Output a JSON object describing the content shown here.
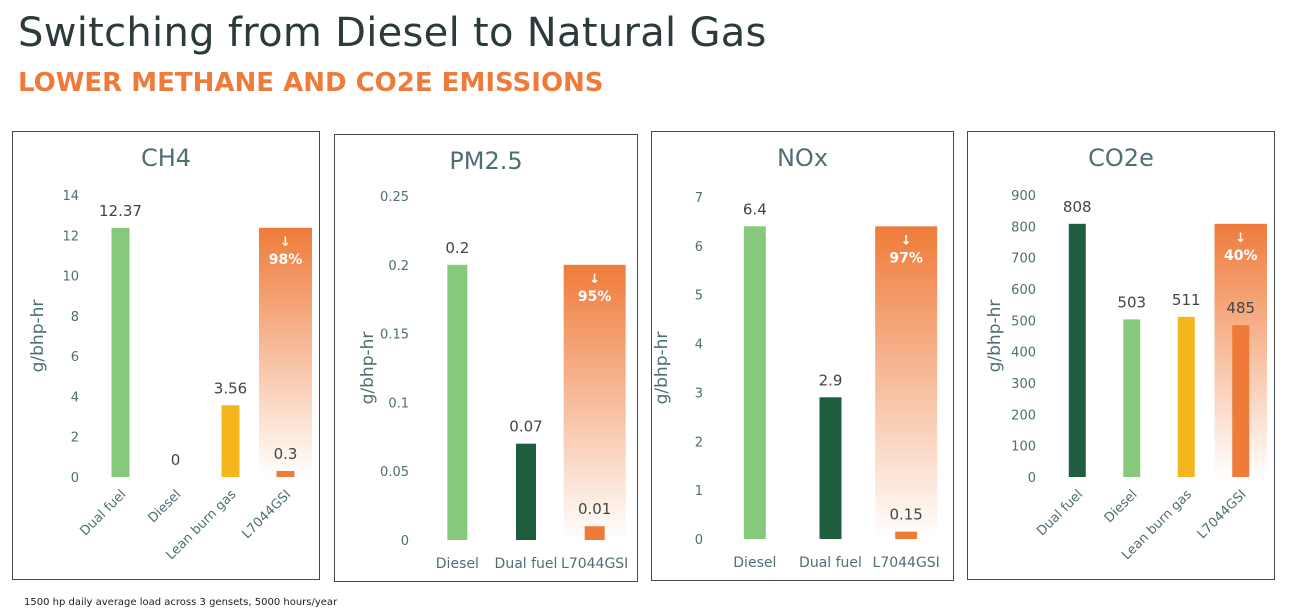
{
  "header": {
    "title": "Switching from Diesel to Natural Gas",
    "subtitle": "LOWER METHANE AND CO2E EMISSIONS"
  },
  "footnote": "1500 hp daily average load across 3 gensets, 5000 hours/year",
  "colors": {
    "light_green": "#87c97a",
    "dark_green": "#1e5e3f",
    "yellow": "#f5b51c",
    "orange": "#ef7b3a",
    "title": "#2b3a3a",
    "axis_text": "#4f6f73"
  },
  "chart_data": [
    {
      "type": "bar",
      "title": "CH4",
      "ylabel": "g/bhp-hr",
      "ylim": [
        0,
        14
      ],
      "yticks": [
        "0",
        "2",
        "4",
        "6",
        "8",
        "10",
        "12",
        "14"
      ],
      "categories": [
        "Dual fuel",
        "Diesel",
        "Lean burn gas",
        "L7044GSI"
      ],
      "values": [
        12.37,
        0,
        3.56,
        0.3
      ],
      "data_labels": [
        "12.37",
        "0",
        "3.56",
        "0.3"
      ],
      "bar_colors": [
        "#87c97a",
        "#87c97a",
        "#f5b51c",
        "#ef7b3a"
      ],
      "rotated_xlabels": true,
      "reduction": {
        "label": "98%",
        "arrow": "↓",
        "from": 12.37,
        "to": 0.3
      }
    },
    {
      "type": "bar",
      "title": "PM2.5",
      "ylabel": "g/bhp-hr",
      "ylim": [
        0,
        0.25
      ],
      "yticks": [
        "0",
        "0.05",
        "0.1",
        "0.15",
        "0.2",
        "0.25"
      ],
      "categories": [
        "Diesel",
        "Dual fuel",
        "L7044GSI"
      ],
      "values": [
        0.2,
        0.07,
        0.01
      ],
      "data_labels": [
        "0.2",
        "0.07",
        "0.01"
      ],
      "bar_colors": [
        "#87c97a",
        "#1e5e3f",
        "#ef7b3a"
      ],
      "rotated_xlabels": false,
      "reduction": {
        "label": "95%",
        "arrow": "↓",
        "from": 0.2,
        "to": 0.01
      }
    },
    {
      "type": "bar",
      "title": "NOx",
      "ylabel": "g/bhp-hr",
      "ylim": [
        0,
        7
      ],
      "yticks": [
        "0",
        "1",
        "2",
        "3",
        "4",
        "5",
        "6",
        "7"
      ],
      "categories": [
        "Diesel",
        "Dual fuel",
        "L7044GSI"
      ],
      "values": [
        6.4,
        2.9,
        0.15
      ],
      "data_labels": [
        "6.4",
        "2.9",
        "0.15"
      ],
      "bar_colors": [
        "#87c97a",
        "#1e5e3f",
        "#ef7b3a"
      ],
      "rotated_xlabels": false,
      "reduction": {
        "label": "97%",
        "arrow": "↓",
        "from": 6.4,
        "to": 0.15
      }
    },
    {
      "type": "bar",
      "title": "CO2e",
      "ylabel": "g/bhp-hr",
      "ylim": [
        0,
        900
      ],
      "yticks": [
        "0",
        "100",
        "200",
        "300",
        "400",
        "500",
        "600",
        "700",
        "800",
        "900"
      ],
      "categories": [
        "Dual fuel",
        "Diesel",
        "Lean burn gas",
        "L7044GSI"
      ],
      "values": [
        808,
        503,
        511,
        485
      ],
      "data_labels": [
        "808",
        "503",
        "511",
        "485"
      ],
      "bar_colors": [
        "#1e5e3f",
        "#87c97a",
        "#f5b51c",
        "#ef7b3a"
      ],
      "rotated_xlabels": true,
      "reduction": {
        "label": "40%",
        "arrow": "↓",
        "from": 808,
        "to": 485
      }
    }
  ]
}
